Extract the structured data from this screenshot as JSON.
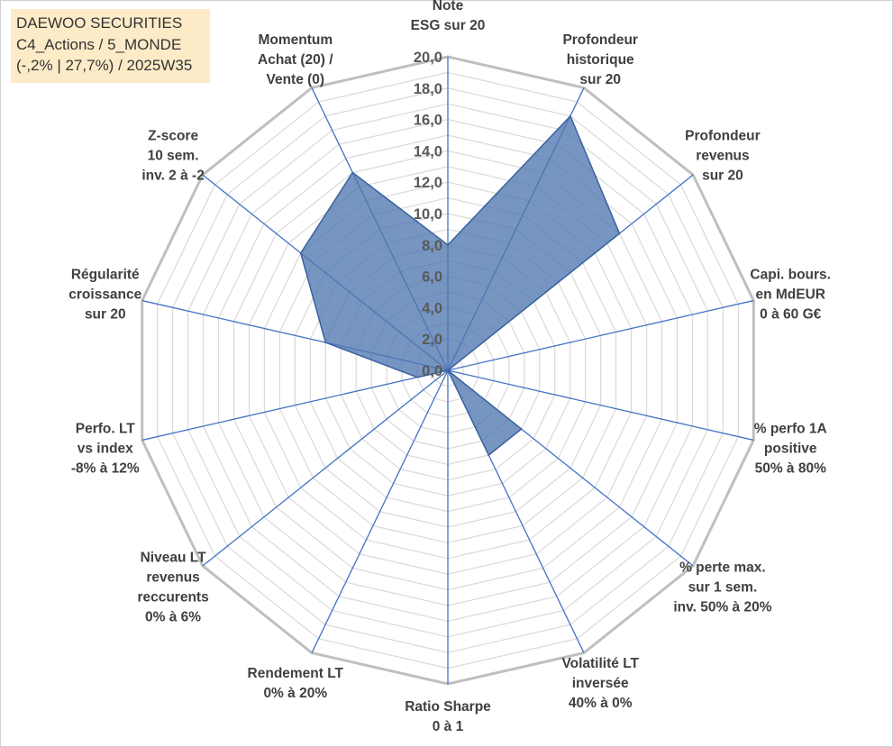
{
  "info_box": {
    "line1": "DAEWOO SECURITIES",
    "line2": "C4_Actions / 5_MONDE",
    "line3": "(-,2% | 27,7%) / 2025W35"
  },
  "chart_data": {
    "type": "radar",
    "title": "",
    "rmin": 0,
    "rmax": 20,
    "tick_step": 2,
    "tick_labels": [
      "0,0",
      "2,0",
      "4,0",
      "6,0",
      "8,0",
      "10,0",
      "12,0",
      "14,0",
      "16,0",
      "18,0",
      "20,0"
    ],
    "grid": true,
    "axes": [
      [
        "Note",
        "ESG sur 20"
      ],
      [
        "Profondeur",
        "historique",
        "sur 20"
      ],
      [
        "Profondeur",
        "revenus",
        "sur 20"
      ],
      [
        "Capi. bours.",
        "en MdEUR",
        "0 à 60 G€"
      ],
      [
        "% perfo 1A",
        "positive",
        "50% à 80%"
      ],
      [
        "% perte max.",
        "sur 1 sem.",
        "inv. 50% à 20%"
      ],
      [
        "Volatilité LT",
        "inversée",
        "40% à 0%"
      ],
      [
        "Ratio Sharpe",
        "0 à 1"
      ],
      [
        "Rendement LT",
        "0% à 20%"
      ],
      [
        "Niveau LT",
        "revenus",
        "reccurents",
        "0% à 6%"
      ],
      [
        "Perfo. LT",
        "vs index",
        "-8% à 12%"
      ],
      [
        "Régularité",
        "croissance",
        "sur 20"
      ],
      [
        "Z-score",
        "10 sem.",
        "inv. 2 à -2"
      ],
      [
        "Momentum",
        "Achat (20) /",
        "Vente (0)"
      ]
    ],
    "series": [
      {
        "values": [
          8.0,
          18.0,
          14.0,
          0.0,
          0.0,
          6.0,
          6.0,
          0.0,
          0.0,
          0.0,
          2.0,
          8.0,
          12.0,
          14.0
        ],
        "color": "#4f77b0"
      }
    ],
    "colors": {
      "grid": "#d9d9d9",
      "outer_ring": "#bfbfbf",
      "spoke": "#4472c4",
      "fill": "#4f77b0"
    }
  }
}
